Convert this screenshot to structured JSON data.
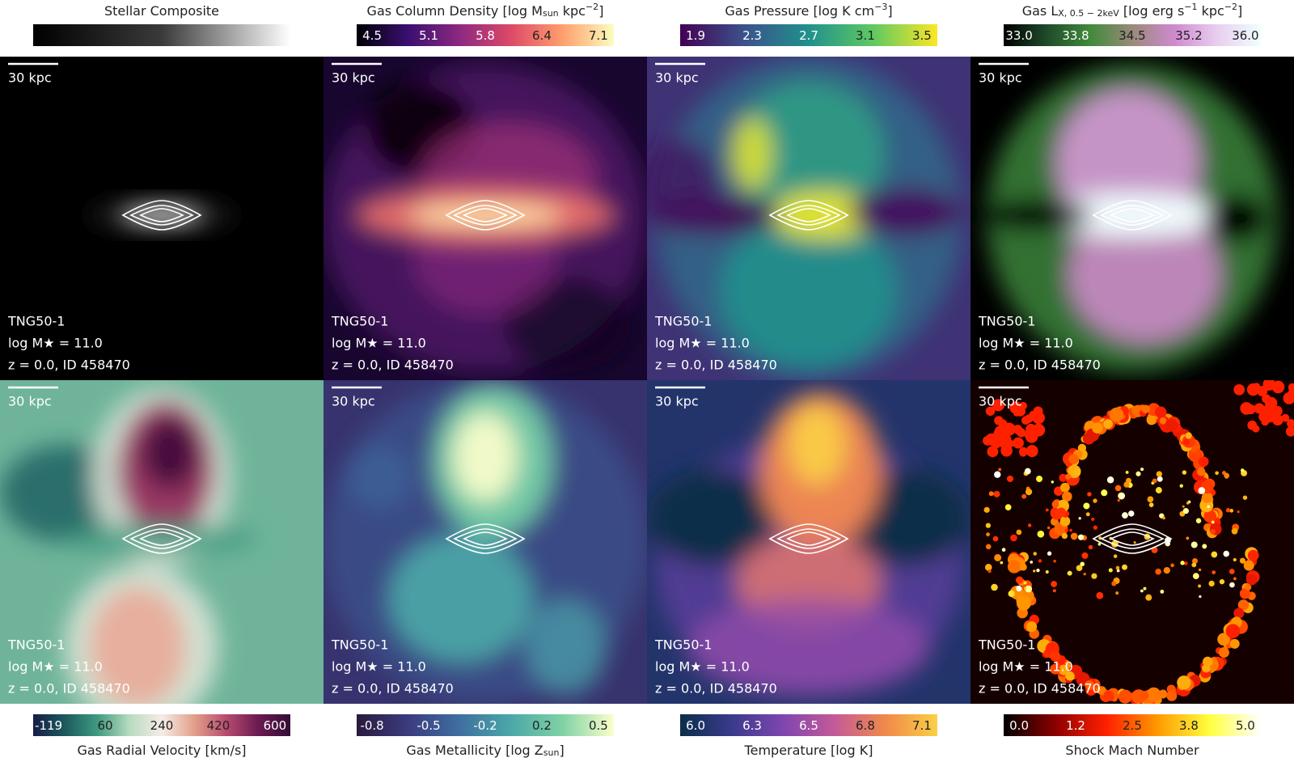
{
  "scale_bar": "30 kpc",
  "annotation": {
    "simulation": "TNG50-1",
    "mass": "log M★ = 11.0",
    "redshift": "z = 0.0, ID 458470"
  },
  "panels": [
    {
      "colorbar": {
        "title": [
          {
            "text": "Stellar Composite"
          }
        ],
        "ticks": []
      },
      "colormap": [
        "#000000",
        "#3a3a3a",
        "#ffffff"
      ]
    },
    {
      "colorbar": {
        "title": [
          {
            "text": "Gas Column Density [log M"
          },
          {
            "text": "sun",
            "script": "sub"
          },
          {
            "text": " kpc"
          },
          {
            "text": "−2",
            "script": "sup"
          },
          {
            "text": "]"
          }
        ],
        "ticks": [
          "4.5",
          "5.1",
          "5.8",
          "6.4",
          "7.1"
        ]
      },
      "colormap": [
        "#000004",
        "#3b0f70",
        "#8c2981",
        "#de4968",
        "#fe9f6d",
        "#fcfdbf"
      ]
    },
    {
      "colorbar": {
        "title": [
          {
            "text": "Gas Pressure [log K cm"
          },
          {
            "text": "−3",
            "script": "sup"
          },
          {
            "text": "]"
          }
        ],
        "ticks": [
          "1.9",
          "2.3",
          "2.7",
          "3.1",
          "3.5"
        ]
      },
      "colormap": [
        "#440154",
        "#3b528b",
        "#21918c",
        "#5ec962",
        "#fde725"
      ]
    },
    {
      "colorbar": {
        "title": [
          {
            "text": "Gas L"
          },
          {
            "text": "X, 0.5 − 2keV",
            "script": "sub"
          },
          {
            "text": " [log erg s"
          },
          {
            "text": "−1",
            "script": "sup"
          },
          {
            "text": " kpc"
          },
          {
            "text": "−2",
            "script": "sup"
          },
          {
            "text": "]"
          }
        ],
        "ticks": [
          "33.0",
          "33.8",
          "34.5",
          "35.2",
          "36.0"
        ]
      },
      "colormap": [
        "#000000",
        "#1f4a2a",
        "#3f8a3a",
        "#9a8a7a",
        "#d08ad0",
        "#e8d0f0",
        "#f0ffff"
      ]
    },
    {
      "colorbar": {
        "title": [
          {
            "text": "Gas Radial Velocity [km/s]"
          }
        ],
        "ticks": [
          "-119",
          "60",
          "240",
          "420",
          "600"
        ]
      },
      "colormap": [
        "#151d44",
        "#1d5a5f",
        "#3f9a80",
        "#b8dcc0",
        "#f5ece8",
        "#e3a08a",
        "#b84c6f",
        "#6b1a52",
        "#340d35"
      ]
    },
    {
      "colorbar": {
        "title": [
          {
            "text": "Gas Metallicity [log Z"
          },
          {
            "text": "sun",
            "script": "sub"
          },
          {
            "text": "]"
          }
        ],
        "ticks": [
          "-0.8",
          "-0.5",
          "-0.2",
          "0.2",
          "0.5"
        ]
      },
      "colormap": [
        "#2a1a3e",
        "#3b3b7e",
        "#3f6fa0",
        "#4ba8a8",
        "#7fd2a4",
        "#fdfecc"
      ]
    },
    {
      "colorbar": {
        "title": [
          {
            "text": "Temperature [log K]"
          }
        ],
        "ticks": [
          "6.0",
          "6.3",
          "6.5",
          "6.8",
          "7.1"
        ]
      },
      "colormap": [
        "#0b2e4a",
        "#3a3a8c",
        "#7e46b0",
        "#c45a98",
        "#f08a4a",
        "#fbd045"
      ]
    },
    {
      "colorbar": {
        "title": [
          {
            "text": "Shock Mach Number"
          }
        ],
        "ticks": [
          "0.0",
          "1.2",
          "2.5",
          "3.8",
          "5.0"
        ]
      },
      "colormap": [
        "#000000",
        "#8b0000",
        "#ff2000",
        "#ff9a00",
        "#ffff40",
        "#ffffff"
      ]
    }
  ]
}
